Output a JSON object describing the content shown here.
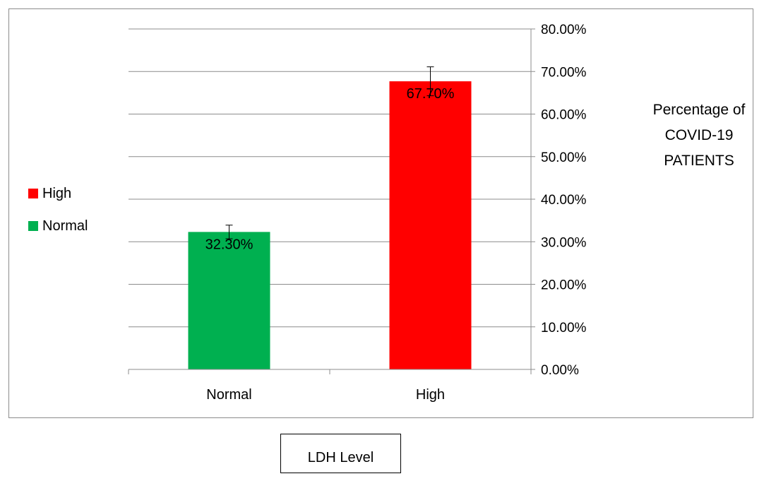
{
  "chart_data": {
    "type": "bar",
    "categories": [
      "Normal",
      "High"
    ],
    "series": [
      {
        "name": "Normal",
        "values": [
          32.3,
          null
        ],
        "color": "#00b050"
      },
      {
        "name": "High",
        "values": [
          null,
          67.7
        ],
        "color": "#ff0000"
      }
    ],
    "values": [
      32.3,
      67.7
    ],
    "value_labels": [
      "32.30%",
      "67.70%"
    ],
    "error_bars": [
      1.6,
      3.4
    ],
    "colors": [
      "#00b050",
      "#ff0000"
    ],
    "ylim": [
      0,
      80
    ],
    "yticks": [
      0,
      10,
      20,
      30,
      40,
      50,
      60,
      70,
      80
    ],
    "ytick_labels": [
      "0.00%",
      "10.00%",
      "20.00%",
      "30.00%",
      "40.00%",
      "50.00%",
      "60.00%",
      "70.00%",
      "80.00%"
    ],
    "y_axis_side": "right",
    "grid": true,
    "legend": {
      "placement": "left",
      "entries": [
        {
          "label": "High",
          "color": "#ff0000"
        },
        {
          "label": "Normal",
          "color": "#00b050"
        }
      ]
    },
    "ylabel_lines": [
      "Percentage of",
      "COVID-19",
      "PATIENTS"
    ],
    "xlabel": "LDH Level"
  }
}
